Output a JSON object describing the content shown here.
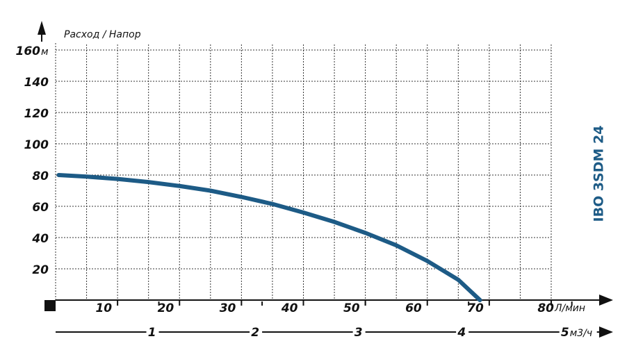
{
  "chart_data": {
    "type": "line",
    "title": "IBO 3SDM 24",
    "y_axis_label": "Расход / Напор",
    "y_unit": "м",
    "x_unit": "Л/мин",
    "x2_unit": "м3/ч",
    "x": [
      0.5,
      5,
      10,
      15,
      20,
      25,
      30,
      35,
      40,
      45,
      50,
      55,
      60,
      65,
      68.5
    ],
    "series": [
      {
        "color": "#1d5b86",
        "values": [
          80,
          79,
          77.5,
          75.5,
          73,
          70,
          66,
          61.5,
          56,
          50,
          43,
          35,
          25,
          13,
          0
        ]
      }
    ],
    "xlim": [
      0,
      80
    ],
    "xticks": [
      10,
      20,
      30,
      40,
      50,
      60,
      70,
      80
    ],
    "xgrid": [
      5,
      10,
      15,
      20,
      25,
      30,
      35,
      40,
      45,
      50,
      55,
      60,
      65,
      70,
      75,
      80
    ],
    "ylim": [
      0,
      160
    ],
    "yticks": [
      20,
      40,
      60,
      80,
      100,
      120,
      140,
      160
    ],
    "x2lim": [
      0,
      4.8
    ],
    "x2ticks": [
      1,
      2,
      3,
      4,
      5
    ],
    "grid": true
  }
}
